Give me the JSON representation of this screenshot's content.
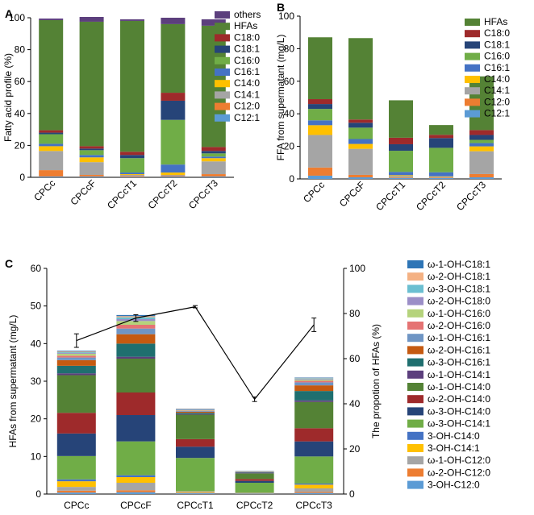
{
  "chart_data": [
    {
      "panel": "A",
      "type": "bar",
      "stacked": true,
      "ylabel": "Fatty acid profile (%)",
      "ylim": [
        0,
        100
      ],
      "yticks": [
        0,
        20,
        40,
        60,
        80,
        100
      ],
      "categories": [
        "CPCc",
        "CPCcF",
        "CPCcT1",
        "CPCcT2",
        "CPCcT3"
      ],
      "legend_position": "right",
      "series": [
        {
          "name": "C12:1",
          "color": "#5b9bd5",
          "values": [
            0.5,
            0.5,
            0.3,
            0.5,
            0.5
          ]
        },
        {
          "name": "C12:0",
          "color": "#ed7d31",
          "values": [
            4,
            1,
            0.5,
            0.5,
            1.5
          ]
        },
        {
          "name": "C14:1",
          "color": "#a5a5a5",
          "values": [
            12,
            8,
            0.7,
            0.5,
            8
          ]
        },
        {
          "name": "C14:0",
          "color": "#ffc000",
          "values": [
            3,
            3,
            0.5,
            1.5,
            2
          ]
        },
        {
          "name": "C16:1",
          "color": "#4472c4",
          "values": [
            1.5,
            1.5,
            1,
            5,
            1
          ]
        },
        {
          "name": "C16:0",
          "color": "#70ad47",
          "values": [
            6,
            3,
            9,
            28,
            2
          ]
        },
        {
          "name": "C18:1",
          "color": "#264478",
          "values": [
            1,
            1,
            2,
            12,
            1.5
          ]
        },
        {
          "name": "C18:0",
          "color": "#9e2a2b",
          "values": [
            1.5,
            1.5,
            2,
            5,
            2.5
          ]
        },
        {
          "name": "HFAs",
          "color": "#548235",
          "values": [
            69,
            78,
            82,
            43,
            76
          ]
        },
        {
          "name": "others",
          "color": "#5c3f7d",
          "values": [
            1,
            3,
            1,
            4,
            4
          ]
        }
      ]
    },
    {
      "panel": "B",
      "type": "bar",
      "stacked": true,
      "ylabel": "FFA from supermatant (mg/L)",
      "ylim": [
        0,
        100
      ],
      "yticks": [
        0,
        20,
        40,
        60,
        80,
        100
      ],
      "categories": [
        "CPCc",
        "CPCcF",
        "CPCcT1",
        "CPCcT2",
        "CPCcT3"
      ],
      "legend_position": "right",
      "series": [
        {
          "name": "C12:1",
          "color": "#5b9bd5",
          "values": [
            2,
            1,
            0.5,
            0.5,
            1
          ]
        },
        {
          "name": "C12:0",
          "color": "#ed7d31",
          "values": [
            5,
            1.5,
            0.3,
            0.3,
            2
          ]
        },
        {
          "name": "C14:1",
          "color": "#a5a5a5",
          "values": [
            20,
            16,
            1,
            0.5,
            14
          ]
        },
        {
          "name": "C14:0",
          "color": "#ffc000",
          "values": [
            6,
            3,
            0.5,
            0.3,
            3
          ]
        },
        {
          "name": "C16:1",
          "color": "#4472c4",
          "values": [
            3,
            3,
            2,
            2.5,
            2
          ]
        },
        {
          "name": "C16:0",
          "color": "#70ad47",
          "values": [
            7,
            7,
            13,
            15,
            2
          ]
        },
        {
          "name": "C18:1",
          "color": "#264478",
          "values": [
            3,
            3,
            4,
            6,
            3
          ]
        },
        {
          "name": "C18:0",
          "color": "#9e2a2b",
          "values": [
            3,
            2,
            4,
            2,
            3
          ]
        },
        {
          "name": "HFAs",
          "color": "#548235",
          "values": [
            38,
            50,
            23,
            6,
            33
          ]
        }
      ]
    },
    {
      "panel": "C",
      "type": "bar",
      "stacked": true,
      "ylabel": "HFAs  from supermatant (mg/L)",
      "y2label": "The propotion of HFAs (%)",
      "ylim": [
        0,
        60
      ],
      "yticks": [
        0,
        10,
        20,
        30,
        40,
        50,
        60
      ],
      "y2lim": [
        0,
        100
      ],
      "y2ticks": [
        0,
        20,
        40,
        60,
        80,
        100
      ],
      "categories": [
        "CPCc",
        "CPCcF",
        "CPCcT1",
        "CPCcT2",
        "CPCcT3"
      ],
      "legend_position": "right",
      "series": [
        {
          "name": "3-OH-C12:0",
          "color": "#5b9bd5",
          "values": [
            0.4,
            0.5,
            0.2,
            0.1,
            0.3
          ]
        },
        {
          "name": "ω-2-OH-C12:0",
          "color": "#ed7d31",
          "values": [
            0.5,
            0.5,
            0.1,
            0.05,
            0.3
          ]
        },
        {
          "name": "ω-1-OH-C12:0",
          "color": "#a5a5a5",
          "values": [
            1,
            2,
            0.2,
            0.05,
            0.9
          ]
        },
        {
          "name": "3-OH-C14:1",
          "color": "#ffc000",
          "values": [
            1.5,
            1.5,
            0.2,
            0.1,
            1
          ]
        },
        {
          "name": "3-OH-C14:0",
          "color": "#4472c4",
          "values": [
            0.5,
            0.5,
            0.1,
            0.1,
            0.3
          ]
        },
        {
          "name": "ω-3-OH-C14:1",
          "color": "#70ad47",
          "values": [
            6.2,
            9,
            8.8,
            2.6,
            7.2
          ]
        },
        {
          "name": "ω-3-OH-C14:0",
          "color": "#264478",
          "values": [
            6,
            7,
            3,
            0.5,
            4
          ]
        },
        {
          "name": "ω-2-OH-C14:0",
          "color": "#9e2a2b",
          "values": [
            5.5,
            6,
            2,
            0.5,
            3.5
          ]
        },
        {
          "name": "ω-1-OH-C14:0",
          "color": "#548235",
          "values": [
            10,
            9,
            6.5,
            1.5,
            7
          ]
        },
        {
          "name": "ω-1-OH-C14:1",
          "color": "#5c3f7d",
          "values": [
            0.5,
            0.5,
            0.2,
            0.2,
            0.4
          ]
        },
        {
          "name": "ω-3-OH-C16:1",
          "color": "#1f6f6f",
          "values": [
            2,
            3.5,
            0.3,
            0.1,
            2.5
          ]
        },
        {
          "name": "ω-2-OH-C16:1",
          "color": "#c55a11",
          "values": [
            1.5,
            2.5,
            0.3,
            0.05,
            1.5
          ]
        },
        {
          "name": "ω-1-OH-C16:1",
          "color": "#6f95c4",
          "values": [
            0.7,
            1.5,
            0.2,
            0.05,
            0.8
          ]
        },
        {
          "name": "ω-2-OH-C16:0",
          "color": "#e57373",
          "values": [
            0.5,
            1,
            0.1,
            0.05,
            0.4
          ]
        },
        {
          "name": "ω-1-OH-C16:0",
          "color": "#b5d37c",
          "values": [
            0.5,
            1,
            0.1,
            0.05,
            0.3
          ]
        },
        {
          "name": "ω-2-OH-C18:0",
          "color": "#9b8ec7",
          "values": [
            0.2,
            0.5,
            0.1,
            0.05,
            0.2
          ]
        },
        {
          "name": "ω-3-OH-C18:1",
          "color": "#6bbfd1",
          "values": [
            0.2,
            0.5,
            0.1,
            0.05,
            0.2
          ]
        },
        {
          "name": "ω-2-OH-C18:1",
          "color": "#f4b183",
          "values": [
            0.2,
            0.3,
            0.1,
            0.05,
            0.1
          ]
        },
        {
          "name": "ω-1-OH-C18:1",
          "color": "#2e75b6",
          "values": [
            0.2,
            0.3,
            0.1,
            0.05,
            0.1
          ]
        }
      ],
      "line": {
        "name": "The propotion of HFAs (%)",
        "axis": "right",
        "values": [
          68,
          78,
          83,
          42,
          75
        ],
        "errors": [
          3,
          1.5,
          0.5,
          1,
          3
        ]
      }
    }
  ]
}
